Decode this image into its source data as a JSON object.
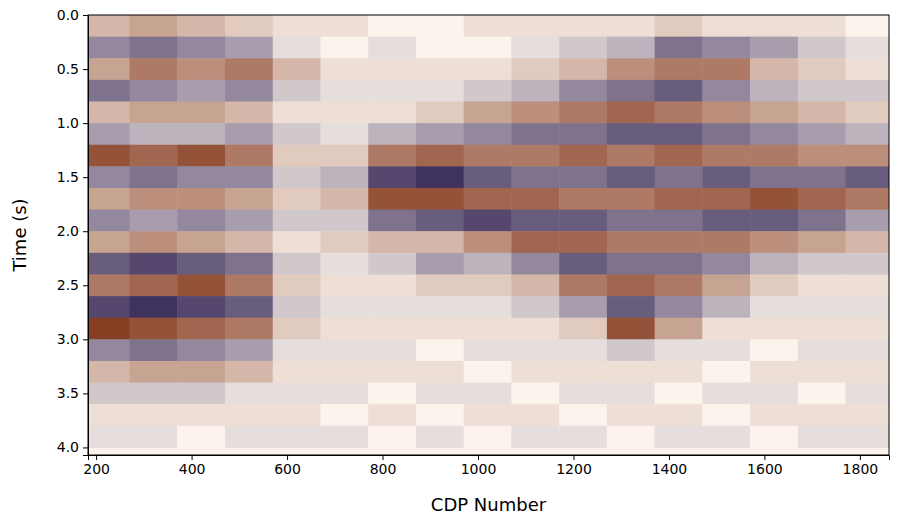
{
  "chart_data": {
    "type": "heatmap",
    "x_label": "CDP Number",
    "y_label": "Time (s)",
    "xlim": [
      183,
      1861
    ],
    "ylim": [
      4.07,
      0
    ],
    "xticks": [
      200,
      400,
      600,
      800,
      1000,
      1200,
      1400,
      1600,
      1800
    ],
    "yticks": [
      {
        "value": 0,
        "label": "0.0"
      },
      0.5,
      {
        "value": 1,
        "label": "1.0"
      },
      1.5,
      {
        "value": 2,
        "label": "2.0"
      },
      2.5,
      {
        "value": 3,
        "label": "3.0"
      },
      3.5,
      {
        "value": 4,
        "label": "4.0"
      }
    ],
    "zlim": [
      -1,
      1
    ],
    "x": [
      220,
      320,
      420,
      520,
      620,
      720,
      820,
      920,
      1020,
      1120,
      1220,
      1320,
      1420,
      1520,
      1620,
      1720,
      1820
    ],
    "y": [
      0.1,
      0.3,
      0.5,
      0.7,
      0.9,
      1.1,
      1.3,
      1.5,
      1.7,
      1.9,
      2.1,
      2.3,
      2.5,
      2.7,
      2.9,
      3.1,
      3.3,
      3.5,
      3.7,
      3.9
    ],
    "values": [
      [
        0.3,
        0.4,
        0.3,
        0.2,
        0.1,
        0.1,
        0.0,
        0.0,
        0.1,
        0.1,
        0.1,
        0.1,
        0.2,
        0.1,
        0.1,
        0.1,
        0.0
      ],
      [
        -0.5,
        -0.6,
        -0.5,
        -0.4,
        -0.1,
        0.0,
        -0.1,
        0.0,
        0.0,
        -0.1,
        -0.2,
        -0.3,
        -0.6,
        -0.5,
        -0.4,
        -0.2,
        -0.1
      ],
      [
        0.4,
        0.6,
        0.5,
        0.6,
        0.3,
        0.1,
        0.1,
        0.1,
        0.1,
        0.2,
        0.3,
        0.5,
        0.6,
        0.6,
        0.3,
        0.2,
        0.1
      ],
      [
        -0.6,
        -0.5,
        -0.4,
        -0.5,
        -0.2,
        -0.1,
        -0.1,
        -0.1,
        -0.2,
        -0.3,
        -0.5,
        -0.6,
        -0.7,
        -0.5,
        -0.3,
        -0.2,
        -0.2
      ],
      [
        0.3,
        0.4,
        0.4,
        0.3,
        0.1,
        0.1,
        0.1,
        0.2,
        0.4,
        0.5,
        0.6,
        0.7,
        0.6,
        0.5,
        0.4,
        0.3,
        0.2
      ],
      [
        -0.4,
        -0.3,
        -0.3,
        -0.4,
        -0.2,
        -0.1,
        -0.3,
        -0.4,
        -0.5,
        -0.6,
        -0.6,
        -0.7,
        -0.7,
        -0.6,
        -0.5,
        -0.4,
        -0.3
      ],
      [
        0.8,
        0.7,
        0.8,
        0.6,
        0.2,
        0.2,
        0.6,
        0.7,
        0.6,
        0.6,
        0.7,
        0.6,
        0.7,
        0.6,
        0.6,
        0.5,
        0.5
      ],
      [
        -0.5,
        -0.6,
        -0.5,
        -0.5,
        -0.2,
        -0.3,
        -0.8,
        -0.9,
        -0.7,
        -0.6,
        -0.6,
        -0.7,
        -0.6,
        -0.7,
        -0.6,
        -0.6,
        -0.7
      ],
      [
        0.4,
        0.5,
        0.5,
        0.4,
        0.2,
        0.3,
        0.8,
        0.8,
        0.7,
        0.7,
        0.6,
        0.6,
        0.7,
        0.7,
        0.8,
        0.7,
        0.6
      ],
      [
        -0.5,
        -0.4,
        -0.5,
        -0.4,
        -0.2,
        -0.2,
        -0.6,
        -0.7,
        -0.8,
        -0.7,
        -0.7,
        -0.6,
        -0.6,
        -0.7,
        -0.7,
        -0.6,
        -0.4
      ],
      [
        0.4,
        0.5,
        0.4,
        0.3,
        0.1,
        0.2,
        0.3,
        0.3,
        0.5,
        0.7,
        0.7,
        0.6,
        0.6,
        0.6,
        0.5,
        0.4,
        0.3
      ],
      [
        -0.7,
        -0.8,
        -0.7,
        -0.6,
        -0.2,
        -0.1,
        -0.2,
        -0.4,
        -0.3,
        -0.5,
        -0.7,
        -0.6,
        -0.6,
        -0.5,
        -0.3,
        -0.2,
        -0.2
      ],
      [
        0.6,
        0.7,
        0.8,
        0.6,
        0.2,
        0.1,
        0.1,
        0.2,
        0.2,
        0.3,
        0.6,
        0.7,
        0.6,
        0.4,
        0.2,
        0.1,
        0.1
      ],
      [
        -0.8,
        -0.9,
        -0.8,
        -0.7,
        -0.2,
        -0.1,
        -0.1,
        -0.1,
        -0.1,
        -0.2,
        -0.4,
        -0.7,
        -0.5,
        -0.3,
        -0.1,
        -0.1,
        -0.1
      ],
      [
        0.9,
        0.8,
        0.7,
        0.6,
        0.2,
        0.1,
        0.1,
        0.1,
        0.1,
        0.1,
        0.2,
        0.8,
        0.4,
        0.1,
        0.1,
        0.1,
        0.1
      ],
      [
        -0.5,
        -0.6,
        -0.5,
        -0.4,
        -0.1,
        -0.1,
        -0.1,
        0.0,
        -0.1,
        -0.1,
        -0.1,
        -0.2,
        -0.1,
        -0.1,
        0.0,
        -0.1,
        -0.1
      ],
      [
        0.3,
        0.4,
        0.4,
        0.3,
        0.1,
        0.1,
        0.1,
        0.1,
        0.0,
        0.1,
        0.1,
        0.1,
        0.1,
        0.0,
        0.1,
        0.1,
        0.1
      ],
      [
        -0.2,
        -0.2,
        -0.2,
        -0.1,
        -0.1,
        -0.1,
        0.0,
        -0.1,
        -0.1,
        0.0,
        -0.1,
        -0.1,
        0.0,
        -0.1,
        -0.1,
        0.0,
        -0.1
      ],
      [
        0.1,
        0.1,
        0.1,
        0.1,
        0.1,
        0.0,
        0.1,
        0.0,
        0.1,
        0.1,
        0.0,
        0.1,
        0.1,
        0.0,
        0.1,
        0.1,
        0.1
      ],
      [
        -0.1,
        -0.1,
        0.0,
        -0.1,
        -0.1,
        -0.1,
        0.0,
        -0.1,
        0.0,
        -0.1,
        -0.1,
        0.0,
        -0.1,
        -0.1,
        0.0,
        -0.1,
        -0.1
      ]
    ]
  }
}
